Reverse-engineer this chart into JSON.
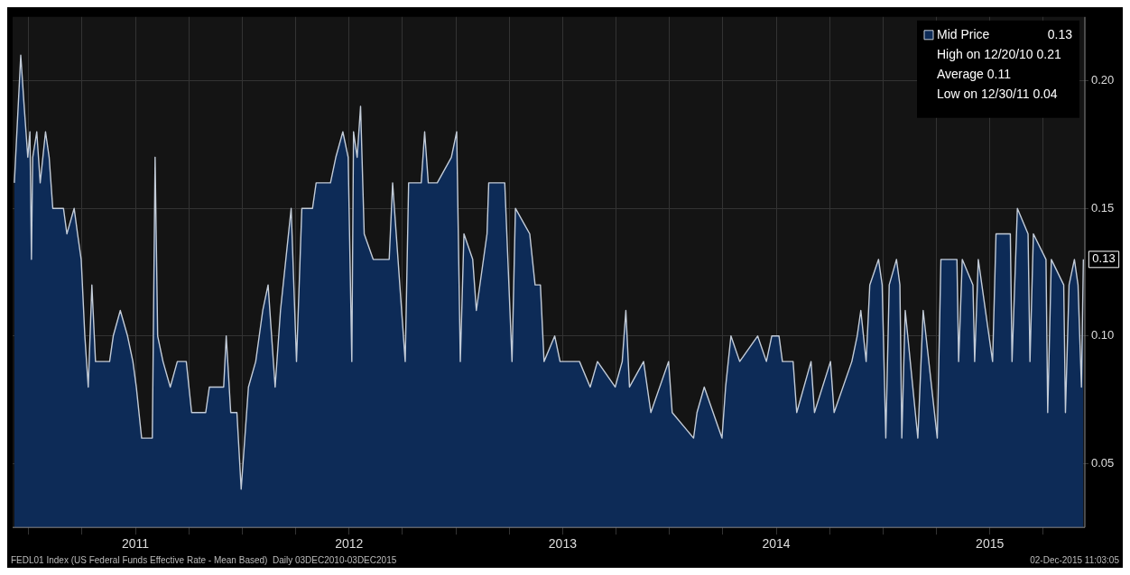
{
  "chart_data": {
    "type": "area",
    "x": [
      2010.933,
      2010.963,
      2010.979,
      2010.996,
      2011.006,
      2011.013,
      2011.019,
      2011.038,
      2011.054,
      2011.079,
      2011.096,
      2011.113,
      2011.163,
      2011.179,
      2011.213,
      2011.229,
      2011.246,
      2011.263,
      2011.279,
      2011.296,
      2011.313,
      2011.379,
      2011.396,
      2011.429,
      2011.463,
      2011.488,
      2011.504,
      2011.529,
      2011.579,
      2011.592,
      2011.604,
      2011.629,
      2011.663,
      2011.696,
      2011.738,
      2011.763,
      2011.829,
      2011.846,
      2011.913,
      2011.925,
      2011.946,
      2011.975,
      2011.995,
      2012.029,
      2012.063,
      2012.096,
      2012.121,
      2012.154,
      2012.179,
      2012.204,
      2012.229,
      2012.254,
      2012.279,
      2012.329,
      2012.346,
      2012.413,
      2012.438,
      2012.471,
      2012.496,
      2012.513,
      2012.521,
      2012.538,
      2012.554,
      2012.571,
      2012.613,
      2012.688,
      2012.704,
      2012.763,
      2012.779,
      2012.838,
      2012.854,
      2012.871,
      2012.913,
      2012.979,
      2013.004,
      2013.021,
      2013.038,
      2013.079,
      2013.096,
      2013.146,
      2013.154,
      2013.229,
      2013.263,
      2013.279,
      2013.346,
      2013.371,
      2013.396,
      2013.413,
      2013.463,
      2013.488,
      2013.513,
      2013.579,
      2013.629,
      2013.663,
      2013.746,
      2013.779,
      2013.796,
      2013.813,
      2013.879,
      2013.913,
      2013.996,
      2014.013,
      2014.113,
      2014.129,
      2014.163,
      2014.246,
      2014.263,
      2014.288,
      2014.329,
      2014.413,
      2014.454,
      2014.479,
      2014.513,
      2014.529,
      2014.579,
      2014.596,
      2014.663,
      2014.679,
      2014.754,
      2014.771,
      2014.854,
      2014.879,
      2014.896,
      2014.921,
      2014.938,
      2014.979,
      2014.996,
      2015.013,
      2015.029,
      2015.063,
      2015.079,
      2015.088,
      2015.104,
      2015.163,
      2015.188,
      2015.254,
      2015.271,
      2015.346,
      2015.354,
      2015.371,
      2015.421,
      2015.429,
      2015.446,
      2015.513,
      2015.529,
      2015.596,
      2015.604,
      2015.629,
      2015.679,
      2015.688,
      2015.704,
      2015.763,
      2015.771,
      2015.788,
      2015.846,
      2015.854,
      2015.871,
      2015.896,
      2015.913,
      2015.929,
      2015.938
    ],
    "series": [
      {
        "name": "Mid Price",
        "color": "#0d2b57",
        "values": [
          0.16,
          0.21,
          0.19,
          0.17,
          0.18,
          0.13,
          0.17,
          0.18,
          0.16,
          0.18,
          0.17,
          0.15,
          0.15,
          0.14,
          0.15,
          0.14,
          0.13,
          0.1,
          0.08,
          0.12,
          0.09,
          0.09,
          0.1,
          0.11,
          0.1,
          0.09,
          0.08,
          0.06,
          0.06,
          0.17,
          0.1,
          0.09,
          0.08,
          0.09,
          0.09,
          0.07,
          0.07,
          0.08,
          0.08,
          0.1,
          0.07,
          0.07,
          0.04,
          0.08,
          0.09,
          0.11,
          0.12,
          0.08,
          0.11,
          0.13,
          0.15,
          0.09,
          0.15,
          0.15,
          0.16,
          0.16,
          0.17,
          0.18,
          0.17,
          0.09,
          0.18,
          0.17,
          0.19,
          0.14,
          0.13,
          0.13,
          0.16,
          0.09,
          0.16,
          0.16,
          0.18,
          0.16,
          0.16,
          0.17,
          0.18,
          0.09,
          0.14,
          0.13,
          0.11,
          0.14,
          0.16,
          0.16,
          0.09,
          0.15,
          0.14,
          0.12,
          0.12,
          0.09,
          0.1,
          0.09,
          0.09,
          0.09,
          0.08,
          0.09,
          0.08,
          0.09,
          0.11,
          0.08,
          0.09,
          0.07,
          0.09,
          0.07,
          0.06,
          0.07,
          0.08,
          0.06,
          0.08,
          0.1,
          0.09,
          0.1,
          0.09,
          0.1,
          0.1,
          0.09,
          0.09,
          0.07,
          0.09,
          0.07,
          0.09,
          0.07,
          0.09,
          0.1,
          0.11,
          0.09,
          0.12,
          0.13,
          0.12,
          0.06,
          0.12,
          0.13,
          0.12,
          0.06,
          0.11,
          0.06,
          0.11,
          0.06,
          0.13,
          0.13,
          0.09,
          0.13,
          0.12,
          0.09,
          0.13,
          0.09,
          0.14,
          0.14,
          0.09,
          0.15,
          0.14,
          0.09,
          0.14,
          0.13,
          0.07,
          0.13,
          0.12,
          0.07,
          0.12,
          0.13,
          0.12,
          0.08,
          0.13
        ]
      }
    ],
    "xlim": [
      2010.925,
      2015.945
    ],
    "xticks": [
      {
        "value": 2011,
        "label": null
      },
      {
        "value": 2011.25,
        "label": null
      },
      {
        "value": 2011.5,
        "label": "2011"
      },
      {
        "value": 2011.75,
        "label": null
      },
      {
        "value": 2012,
        "label": null
      },
      {
        "value": 2012.25,
        "label": null
      },
      {
        "value": 2012.5,
        "label": "2012"
      },
      {
        "value": 2012.75,
        "label": null
      },
      {
        "value": 2013,
        "label": null
      },
      {
        "value": 2013.25,
        "label": null
      },
      {
        "value": 2013.5,
        "label": "2013"
      },
      {
        "value": 2013.75,
        "label": null
      },
      {
        "value": 2014,
        "label": null
      },
      {
        "value": 2014.25,
        "label": null
      },
      {
        "value": 2014.5,
        "label": "2014"
      },
      {
        "value": 2014.75,
        "label": null
      },
      {
        "value": 2015,
        "label": null
      },
      {
        "value": 2015.25,
        "label": null
      },
      {
        "value": 2015.5,
        "label": "2015"
      },
      {
        "value": 2015.75,
        "label": null
      }
    ],
    "ylim": [
      0.025,
      0.225
    ],
    "yticks": [
      0.05,
      {
        "value": 0.1,
        "label": "0.10"
      },
      0.15,
      {
        "value": 0.2,
        "label": "0.20"
      }
    ],
    "grid": true,
    "legend": "top right",
    "marker": "none",
    "annotations": [
      "0.13",
      "High on 12/20/10 0.21",
      "Average 0.11",
      "Low on 12/30/11 0.04",
      {
        "text": "0.13",
        "x": 2015.938,
        "y": 0.13
      },
      "FEDL01 Index (US Federal Funds Effective Rate - Mean Based)  Daily 03DEC2010-03DEC2015",
      "02-Dec-2015 11:03:05"
    ]
  }
}
